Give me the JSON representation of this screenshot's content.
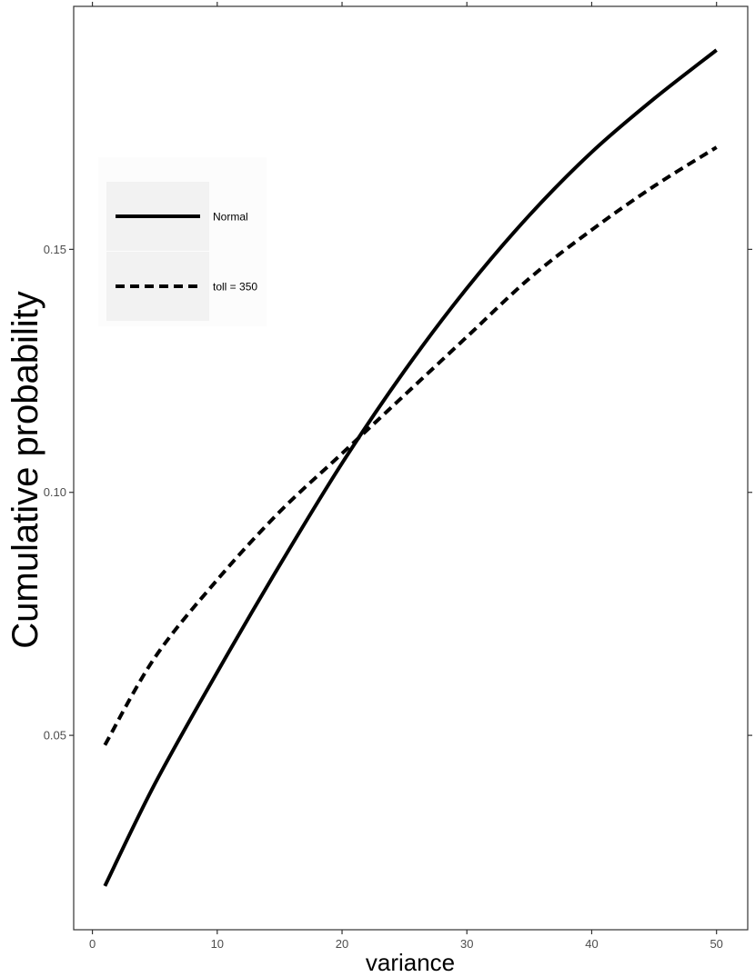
{
  "chart_data": {
    "type": "line",
    "title": "",
    "xlabel": "variance",
    "ylabel": "Cumulative probability",
    "xlim": [
      -1.5,
      52.5
    ],
    "ylim": [
      0.01,
      0.2
    ],
    "x_ticks": [
      0,
      10,
      20,
      30,
      40,
      50
    ],
    "x_tick_labels": [
      "0",
      "10",
      "20",
      "30",
      "40",
      "50"
    ],
    "y_ticks": [
      0.05,
      0.1,
      0.15
    ],
    "y_tick_labels": [
      "0.05",
      "0.10",
      "0.15"
    ],
    "grid": false,
    "legend_position": "top-left",
    "x": [
      1,
      5,
      10,
      15,
      20,
      25,
      30,
      35,
      40,
      45,
      50
    ],
    "series": [
      {
        "name": "Normal",
        "line_style": "solid",
        "color": "#000000",
        "values": [
          0.019,
          0.04,
          0.063,
          0.085,
          0.106,
          0.125,
          0.142,
          0.157,
          0.17,
          0.181,
          0.191
        ]
      },
      {
        "name": "toll = 350",
        "line_style": "dashed",
        "color": "#000000",
        "values": [
          0.048,
          0.066,
          0.082,
          0.096,
          0.108,
          0.12,
          0.132,
          0.144,
          0.154,
          0.163,
          0.171
        ]
      }
    ]
  }
}
